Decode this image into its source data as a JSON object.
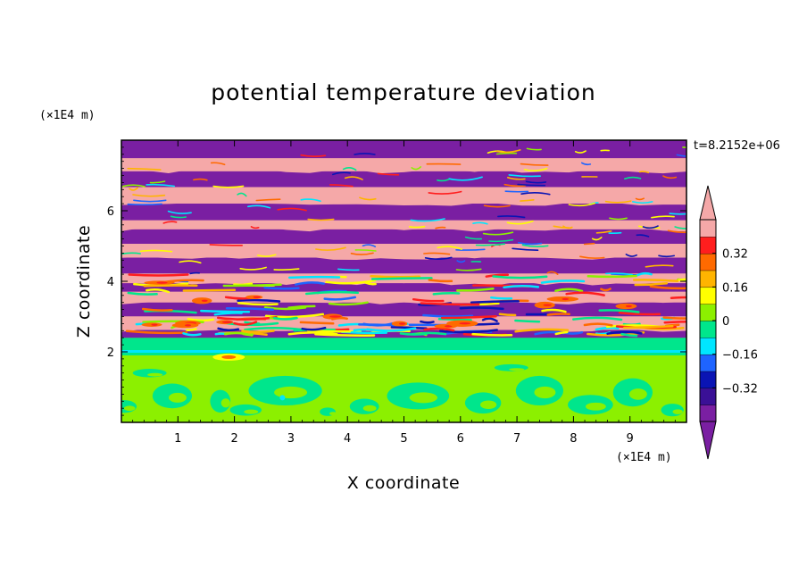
{
  "chart_data": {
    "type": "heatmap",
    "title": "potential temperature deviation",
    "xlabel": "X coordinate",
    "ylabel": "Z coordinate",
    "x_unit": "(×1E4 m)",
    "y_unit": "(×1E4 m)",
    "time_label": "t=8.2152e+06",
    "xlim": [
      0,
      10
    ],
    "ylim": [
      0,
      8
    ],
    "x_ticks": [
      "1",
      "2",
      "3",
      "4",
      "5",
      "6",
      "7",
      "8",
      "9"
    ],
    "y_ticks": [
      "2",
      "4",
      "6"
    ],
    "colorbar": {
      "levels": [
        -0.48,
        -0.4,
        -0.32,
        -0.24,
        -0.16,
        -0.08,
        0,
        0.08,
        0.16,
        0.24,
        0.32,
        0.4,
        0.48
      ],
      "tick_labels": [
        "0.32",
        "0.16",
        "0",
        "−0.16",
        "−0.32"
      ],
      "tick_values": [
        0.32,
        0.16,
        0,
        -0.16,
        -0.32
      ],
      "colors": [
        "#7a1fa2",
        "#3a1096",
        "#0a14b4",
        "#1e64ff",
        "#00e6ff",
        "#00e68c",
        "#8cf000",
        "#ffff00",
        "#ffb400",
        "#ff6a00",
        "#ff1e1e",
        "#f5a8a8"
      ],
      "extend": "both"
    },
    "regions": {
      "lower_layer": {
        "z_range": [
          0,
          2.4
        ],
        "dominant_values": [
          0.04,
          -0.04
        ],
        "colors": [
          "#8cf000",
          "#00e68c"
        ]
      },
      "upper_layer": {
        "z_range": [
          2.4,
          8
        ],
        "dominant_values": [
          0.5,
          -0.5
        ],
        "colors": [
          "#f5a8a8",
          "#7a1fa2"
        ]
      }
    }
  }
}
